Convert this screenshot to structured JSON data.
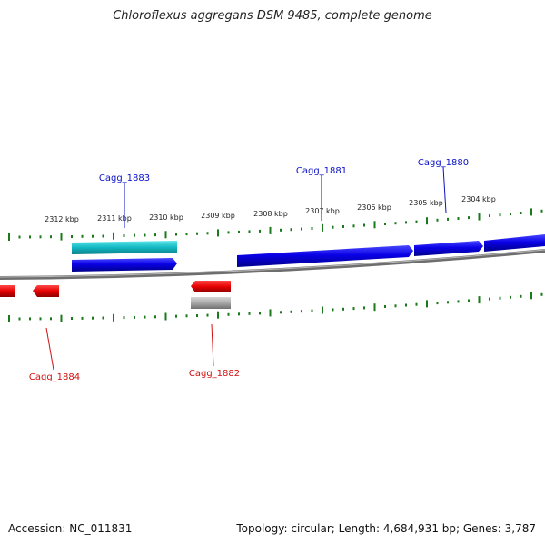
{
  "title": "Chloroflexus aggregans DSM 9485, complete genome",
  "footer": {
    "accession": "Accession: NC_011831",
    "summary": "Topology: circular; Length: 4,684,931 bp; Genes: 3,787"
  },
  "colors": {
    "forward_gene": "#0a00e6",
    "forward_highlight": "#12b8c2",
    "reverse_gene": "#e60000",
    "reverse_pseudo": "#a8a8a8",
    "backbone": "#7a7a7a",
    "tick": "#1a7a1a",
    "forward_label": "#0a10c8",
    "reverse_label": "#d01010"
  },
  "scale": {
    "unit": "kbp",
    "ticks": [
      "2312 kbp",
      "2311 kbp",
      "2310 kbp",
      "2309 kbp",
      "2308 kbp",
      "2307 kbp",
      "2306 kbp",
      "2305 kbp",
      "2304 kbp"
    ]
  },
  "genes": {
    "forward_labels": [
      "Cagg_1883",
      "Cagg_1881",
      "Cagg_1880"
    ],
    "reverse_labels": [
      "Cagg_1884",
      "Cagg_1882"
    ]
  }
}
